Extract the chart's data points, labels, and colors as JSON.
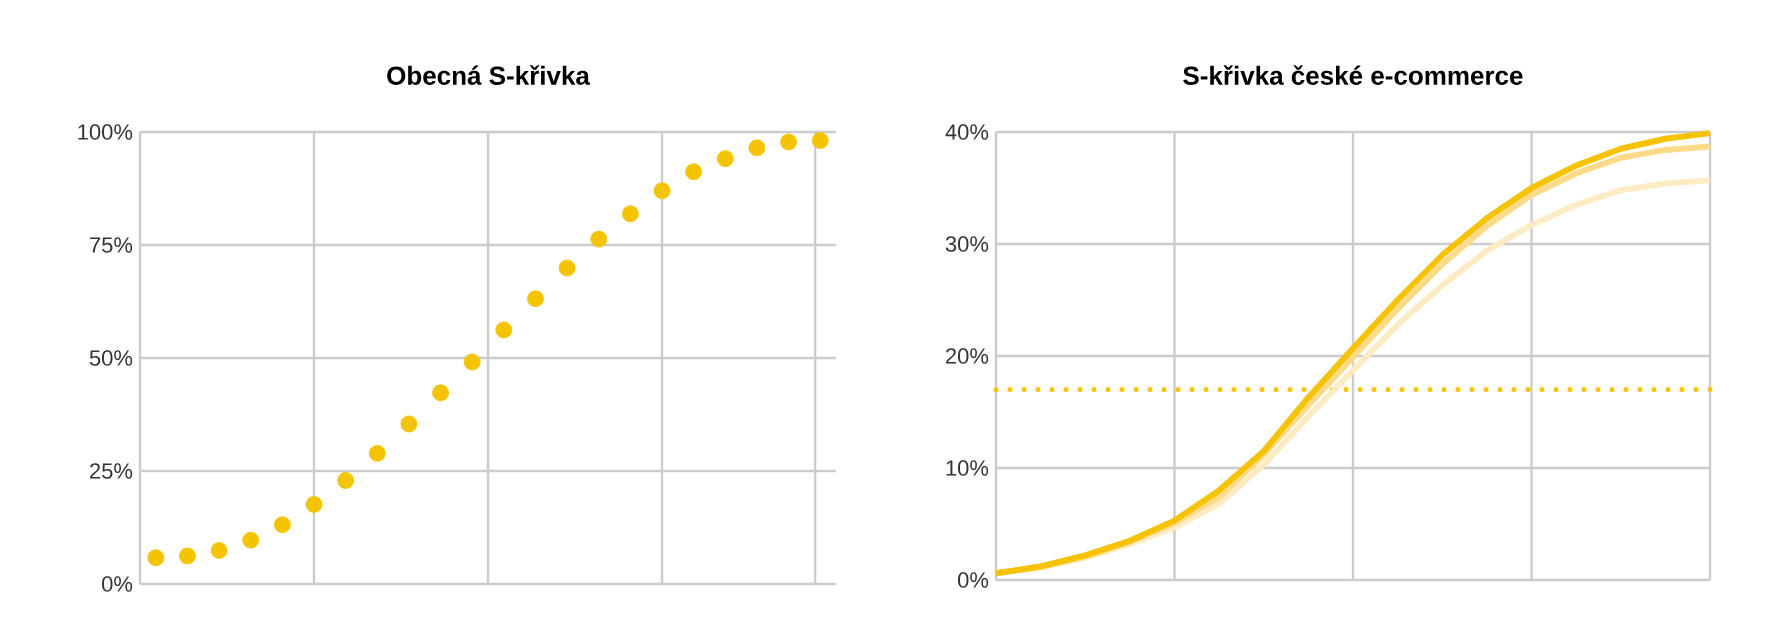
{
  "chart_data": [
    {
      "type": "scatter",
      "title": "Obecná S-křivka",
      "marker": "circle",
      "grid": true,
      "tick_labels": "y",
      "categories": [
        null,
        null,
        null,
        null,
        null,
        null,
        null,
        null,
        null,
        null,
        null,
        null,
        null,
        null,
        null,
        null,
        null,
        null,
        null,
        null,
        null,
        null
      ],
      "ylim": [
        0,
        100
      ],
      "yticks": [
        {
          "value": 0,
          "label": "0%"
        },
        {
          "value": 25,
          "label": "25%"
        },
        {
          "value": 50,
          "label": "50%"
        },
        {
          "value": 75,
          "label": "75%"
        },
        {
          "value": 100,
          "label": "100%"
        }
      ],
      "series": [
        {
          "color": "#f5c400",
          "values": [
            5.8,
            6.2,
            7.4,
            9.7,
            13.1,
            17.6,
            22.9,
            28.9,
            35.4,
            42.3,
            49.1,
            56.2,
            63.1,
            69.9,
            76.3,
            81.9,
            87,
            91.2,
            94.1,
            96.5,
            97.8,
            98.1
          ]
        }
      ]
    },
    {
      "type": "line",
      "title": "S-křivka české e-commerce",
      "grid": true,
      "tick_labels": "y",
      "categories": [
        null,
        null,
        null,
        null,
        null,
        null,
        null,
        null,
        null,
        null,
        null,
        null,
        null,
        null,
        null,
        null,
        null
      ],
      "ylim": [
        0,
        40
      ],
      "yticks": [
        {
          "value": 0,
          "label": "0%"
        },
        {
          "value": 10,
          "label": "10%"
        },
        {
          "value": 20,
          "label": "20%"
        },
        {
          "value": 30,
          "label": "30%"
        },
        {
          "value": 40,
          "label": "40%"
        }
      ],
      "ref_lines": [
        {
          "axis": "y",
          "value": 17,
          "color": "#f5c400",
          "line_style": "dotted"
        }
      ],
      "series": [
        {
          "color": "#fdebc4",
          "values": [
            0.6,
            1.1,
            2,
            3.2,
            4.7,
            6.8,
            10.3,
            14.6,
            18.7,
            22.8,
            26.3,
            29.4,
            31.7,
            33.5,
            34.8,
            35.4,
            35.7
          ]
        },
        {
          "color": "#fbdb8a",
          "values": [
            0.6,
            1.2,
            2.1,
            3.4,
            5.1,
            7.4,
            11.2,
            15.6,
            19.9,
            24.2,
            28.2,
            31.6,
            34.4,
            36.3,
            37.7,
            38.4,
            38.7
          ]
        },
        {
          "color": "#f7c200",
          "values": [
            0.6,
            1.2,
            2.2,
            3.5,
            5.3,
            8,
            11.5,
            16.3,
            20.7,
            25,
            29,
            32.3,
            35,
            37,
            38.5,
            39.4,
            39.9
          ]
        }
      ]
    }
  ]
}
